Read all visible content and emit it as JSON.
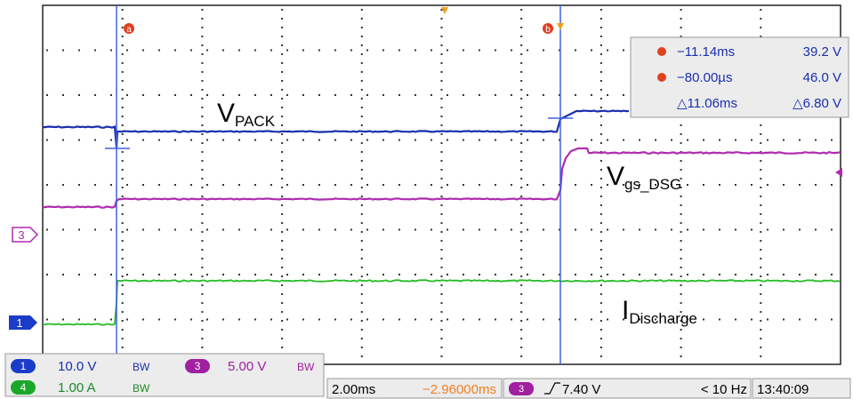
{
  "annotations": {
    "vpack_main": "V",
    "vpack_sub": "PACK",
    "vgs_main": "V",
    "vgs_sub": "gs_DSG",
    "idis_main": "I",
    "idis_sub": "Discharge"
  },
  "cursors": {
    "a_label": "a",
    "b_label": "b",
    "a_time": "−11.14ms",
    "a_volt": "39.2 V",
    "b_time": "−80.00µs",
    "b_volt": "46.0 V",
    "delta_time": "△11.06ms",
    "delta_volt": "△6.80 V"
  },
  "channels": {
    "ch1": {
      "num": "1",
      "scale": "10.0 V",
      "bw": "BW",
      "color": "#1a3cc8"
    },
    "ch3": {
      "num": "3",
      "scale": "5.00 V",
      "bw": "BW",
      "color": "#a020a0"
    },
    "ch4": {
      "num": "4",
      "scale": "1.00 A",
      "bw": "BW",
      "color": "#1aa82a"
    }
  },
  "markers": {
    "ch3_ref": "3",
    "ch1_ref": "1"
  },
  "status": {
    "timebase": "2.00ms",
    "delay": "−2.96000ms",
    "trigger_ch": "3",
    "trigger_level": "7.40 V",
    "trigger_freq": "< 10 Hz",
    "time": "13:40:09"
  },
  "colors": {
    "grid": "#333333",
    "cursor": "#4060e0",
    "trace_pack": "#1a2fb0",
    "trace_gs": "#b02ab0",
    "trace_dis": "#22bb22",
    "cursor_readout": "#e04020"
  }
}
